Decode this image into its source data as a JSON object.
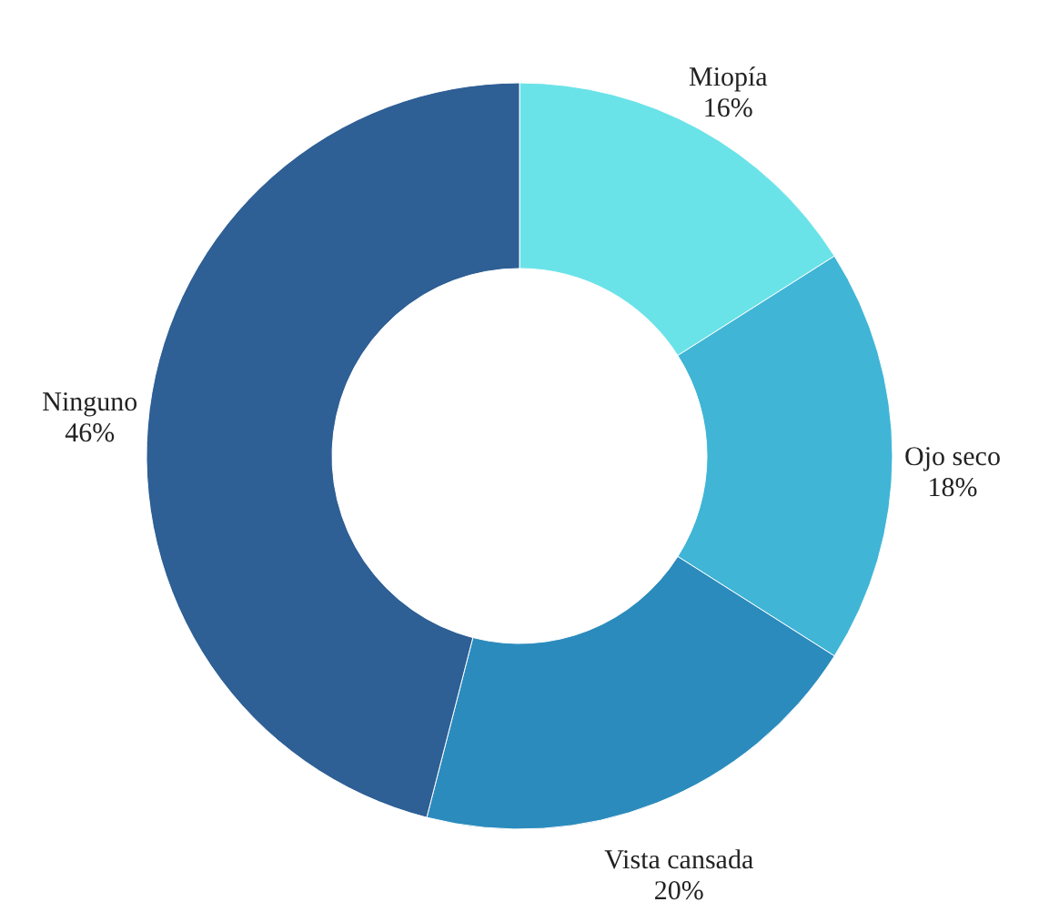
{
  "chart_data": {
    "type": "donut",
    "categories": [
      "Miopía",
      "Ojo seco",
      "Vista cansada",
      "Ninguno"
    ],
    "values": [
      16,
      18,
      20,
      46
    ],
    "value_labels": [
      "16%",
      "18%",
      "20%",
      "46%"
    ],
    "colors": [
      "#6ae3e8",
      "#40b5d6",
      "#2b8bbd",
      "#2e5f95"
    ]
  }
}
